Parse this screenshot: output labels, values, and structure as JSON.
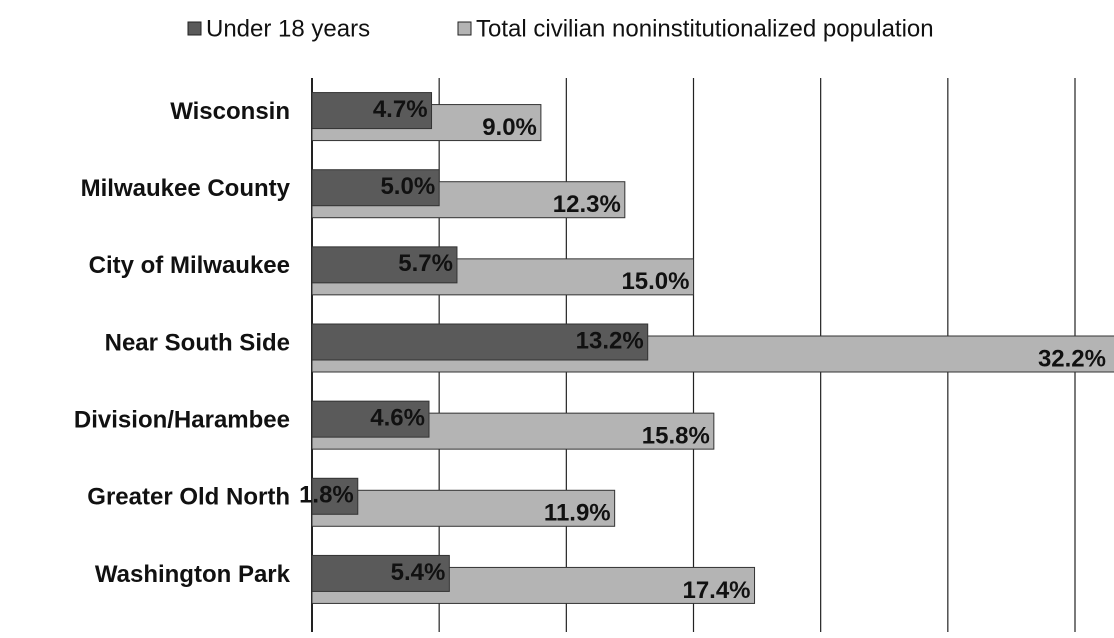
{
  "chart_data": {
    "type": "bar",
    "orientation": "horizontal",
    "categories": [
      "Wisconsin",
      "Milwaukee County",
      "City of Milwaukee",
      "Near South Side",
      "Division/Harambee",
      "Greater Old North",
      "Washington Park"
    ],
    "series": [
      {
        "name": "Under 18 years",
        "color": "#5a5a5a",
        "values": [
          4.7,
          5.0,
          5.7,
          13.2,
          4.6,
          1.8,
          5.4
        ],
        "value_labels": [
          "4.7%",
          "5.0%",
          "5.7%",
          "13.2%",
          "4.6%",
          "1.8%",
          "5.4%"
        ]
      },
      {
        "name": "Total civilian noninstitutionalized population",
        "color": "#b4b4b4",
        "values": [
          9.0,
          12.3,
          15.0,
          32.2,
          15.8,
          11.9,
          17.4
        ],
        "value_labels": [
          "9.0%",
          "12.3%",
          "15.0%",
          "32.2%",
          "15.8%",
          "11.9%",
          "17.4%"
        ]
      }
    ],
    "xlim": [
      0,
      30
    ],
    "xticks": [
      0,
      5,
      10,
      15,
      20,
      25,
      30
    ],
    "grid": true
  }
}
